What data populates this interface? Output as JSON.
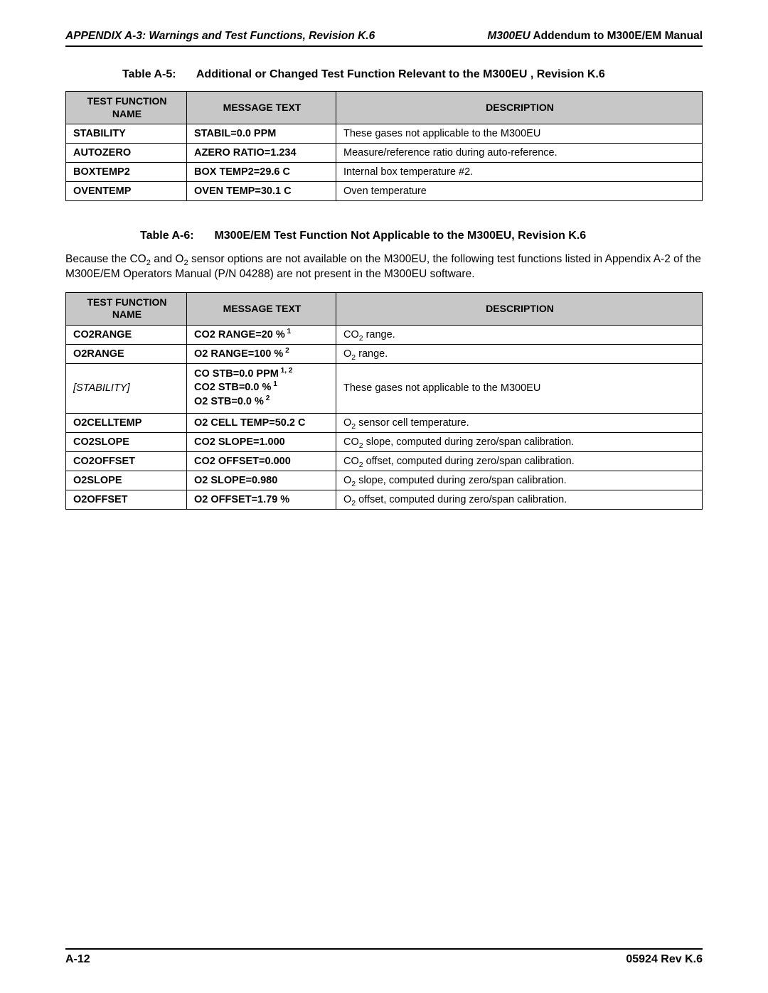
{
  "header": {
    "left": "APPENDIX A-3: Warnings and Test Functions, Revision K.6",
    "right_prefix": "M300EU",
    "right_suffix": " Addendum to M300E/EM Manual"
  },
  "tableA5": {
    "label": "Table A-5:",
    "title": "Additional or Changed Test Function Relevant to the M300EU , Revision K.6",
    "headers": {
      "c1": "TEST FUNCTION NAME",
      "c2": "MESSAGE TEXT",
      "c3": "DESCRIPTION"
    },
    "rows": [
      {
        "fn": "STABILITY",
        "msg": "STABIL=0.0 PPM",
        "desc": "These gases not applicable to the M300EU"
      },
      {
        "fn": "AUTOZERO",
        "msg": "AZERO RATIO=1.234",
        "desc": "Measure/reference ratio during auto-reference."
      },
      {
        "fn": "BOXTEMP2",
        "msg": "BOX TEMP2=29.6 C",
        "desc": "Internal box temperature #2."
      },
      {
        "fn": "OVENTEMP",
        "msg": "OVEN TEMP=30.1 C",
        "desc": "Oven temperature"
      }
    ]
  },
  "tableA6": {
    "label": "Table A-6:",
    "title": "M300E/EM Test Function Not Applicable to the M300EU, Revision K.6",
    "intro_parts": {
      "p1": "Because the CO",
      "p2": " and O",
      "p3": " sensor options are not available on the M300EU, the following test functions listed in Appendix A-2 of the M300E/EM Operators Manual (P/N 04288) are not present in the M300EU software."
    },
    "headers": {
      "c1": "TEST FUNCTION NAME",
      "c2": "MESSAGE TEXT",
      "c3": "DESCRIPTION"
    },
    "rows": [
      {
        "fn": "CO2RANGE",
        "msg_pre": "CO2 RANGE=20 %",
        "msg_sup": " 1",
        "desc_pre": "CO",
        "desc_sub": "2",
        "desc_post": " range."
      },
      {
        "fn": "O2RANGE",
        "msg_pre": "O2 RANGE=100 %",
        "msg_sup": " 2",
        "desc_pre": "O",
        "desc_sub": "2",
        "desc_post": " range."
      },
      {
        "fn": "[STABILITY]",
        "fn_italic": true,
        "msg_lines": [
          {
            "t": "CO STB=0.0 PPM",
            "s": " 1, 2"
          },
          {
            "t": "CO2 STB=0.0 %",
            "s": " 1"
          },
          {
            "t": "O2 STB=0.0 %",
            "s": " 2"
          }
        ],
        "desc_plain": "These gases not applicable to the M300EU"
      },
      {
        "fn": "O2CELLTEMP",
        "msg_pre": "O2 CELL TEMP=50.2 C",
        "desc_pre": "O",
        "desc_sub": "2",
        "desc_post": " sensor cell temperature."
      },
      {
        "fn": "CO2SLOPE",
        "msg_pre": "CO2 SLOPE=1.000",
        "desc_pre": "CO",
        "desc_sub": "2",
        "desc_post": " slope, computed during zero/span calibration."
      },
      {
        "fn": "CO2OFFSET",
        "msg_pre": "CO2 OFFSET=0.000",
        "desc_pre": "CO",
        "desc_sub": "2",
        "desc_post": " offset, computed during zero/span calibration."
      },
      {
        "fn": "O2SLOPE",
        "msg_pre": "O2 SLOPE=0.980",
        "desc_pre": "O",
        "desc_sub": "2",
        "desc_post": " slope, computed during zero/span calibration."
      },
      {
        "fn": "O2OFFSET",
        "msg_pre": "O2 OFFSET=1.79 %",
        "desc_pre": "O",
        "desc_sub": "2",
        "desc_post": " offset, computed during zero/span calibration."
      }
    ]
  },
  "footer": {
    "left": "A-12",
    "right": "05924 Rev K.6"
  }
}
